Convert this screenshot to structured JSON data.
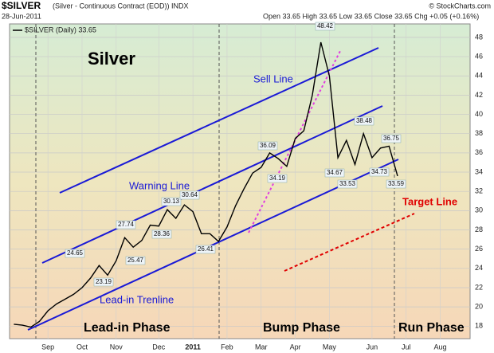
{
  "chart_data": {
    "type": "line",
    "symbol_title": "$SILVER",
    "subtitle": "(Silver - Continuous Contract (EOD)) INDX",
    "date": "28-Jun-2011",
    "quote": "Open 33.65 High 33.65 Low 33.65 Close 33.65 Chg +0.05 (+0.16%)",
    "credit": "© StockCharts.com",
    "categories": [
      null,
      null,
      null,
      null,
      "Sep",
      null,
      null,
      null,
      "Oct",
      null,
      null,
      null,
      "Nov",
      null,
      null,
      null,
      null,
      "Dec",
      null,
      null,
      null,
      "2011",
      null,
      null,
      null,
      "Feb",
      null,
      null,
      null,
      "Mar",
      null,
      null,
      null,
      "Apr",
      null,
      null,
      null,
      "May",
      null,
      null,
      null,
      null,
      "Jun",
      null,
      null,
      null,
      "Jul",
      null,
      null,
      null,
      "Aug",
      null,
      null,
      null
    ],
    "series": [
      {
        "name": "$SILVER (Daily) 33.65",
        "color": "#000000",
        "values": [
          18.2,
          18.1,
          17.9,
          18.5,
          19.6,
          20.3,
          20.8,
          21.3,
          22.0,
          23.0,
          24.3,
          23.3,
          24.8,
          27.2,
          26.2,
          26.9,
          28.5,
          28.4,
          30.1,
          29.2,
          30.6,
          29.9,
          27.6,
          27.6,
          26.8,
          28.3,
          30.5,
          32.3,
          33.9,
          34.5,
          36.0,
          35.4,
          34.6,
          37.5,
          38.3,
          42.0,
          47.5,
          44.0,
          35.5,
          37.3,
          34.8,
          38.0,
          35.5,
          36.5,
          36.7,
          33.6,
          null,
          null,
          null,
          null,
          null,
          null,
          null,
          null
        ]
      }
    ],
    "ylim": [
      16.7,
      49.4
    ],
    "yticks": [
      18,
      20,
      22,
      24,
      26,
      28,
      30,
      32,
      34,
      36,
      38,
      40,
      42,
      44,
      46,
      48
    ],
    "grid": true,
    "annotations": [
      "48.42",
      "36.09",
      "34.19",
      "30.13",
      "30.64",
      "27.74",
      "28.36",
      "24.65",
      "25.47",
      "23.19",
      "26.41",
      "38.48",
      "36.75",
      "34.67",
      "34.73",
      "33.53",
      "33.59"
    ],
    "labels": {
      "asset": "Silver",
      "sell": "Sell Line",
      "warning": "Warning Line",
      "leadin": "Lead-in Trenline",
      "target": "Target Line"
    },
    "phases": [
      "Lead-in Phase",
      "Bump Phase",
      "Run Phase"
    ]
  }
}
